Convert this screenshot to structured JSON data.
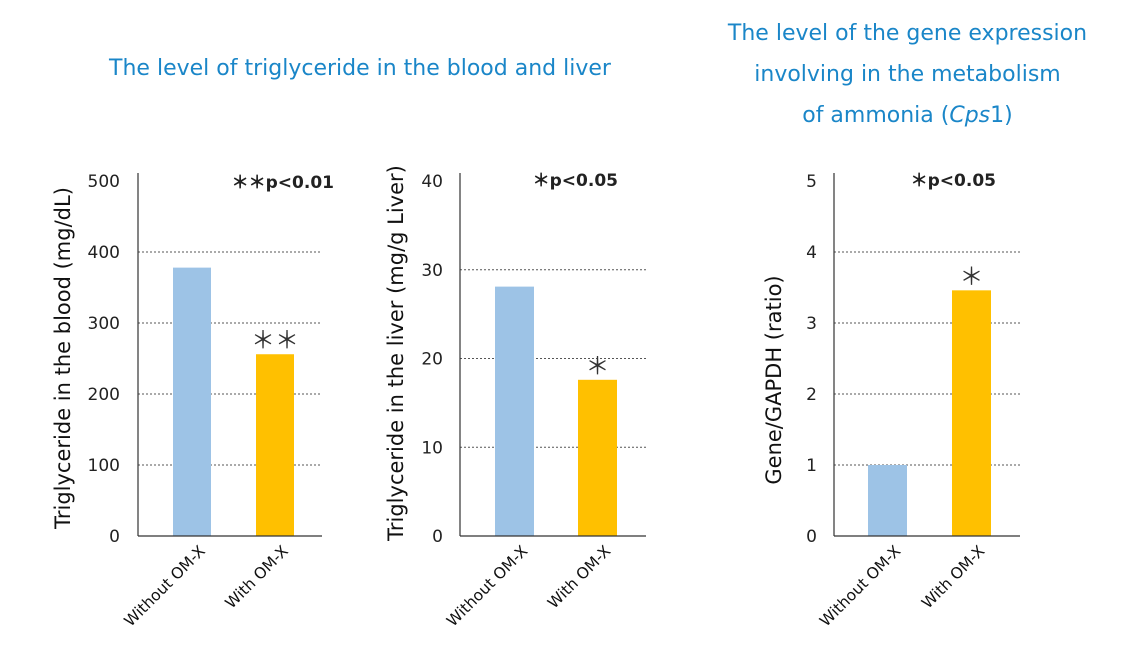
{
  "heading_left": "The level of triglyceride in the blood and liver",
  "heading_right": {
    "line1": "The level of the gene expression",
    "line2": "involving in the metabolism",
    "line3_pre": "of ammonia (",
    "line3_italic": "Cps",
    "line3_post": "1)"
  },
  "colors": {
    "heading": "#1a86c8",
    "without": "#9dc3e6",
    "with": "#ffc000"
  },
  "chart_data": [
    {
      "type": "bar",
      "categories": [
        "Without OM-X",
        "With OM-X"
      ],
      "values": [
        378,
        256
      ],
      "ylabel": "Triglyceride in the blood  (mg/dL)",
      "ylim": [
        0,
        500
      ],
      "yticks": [
        0,
        100,
        200,
        300,
        400,
        500
      ],
      "yticklabels": [
        "0",
        "100",
        "200",
        "300",
        "400",
        "500"
      ],
      "significance_note": "＊＊p<0.01",
      "bar_annotations": [
        "",
        "＊＊"
      ],
      "grid": true
    },
    {
      "type": "bar",
      "categories": [
        "Without OM-X",
        "With OM-X"
      ],
      "values": [
        28.1,
        17.6
      ],
      "ylabel": "Triglyceride in the liver  (mg/g Liver)",
      "ylim": [
        0,
        40
      ],
      "yticks": [
        0,
        10,
        20,
        30,
        40
      ],
      "yticklabels": [
        "0",
        "10",
        "20",
        "30",
        "40"
      ],
      "significance_note": "＊p<0.05",
      "bar_annotations": [
        "",
        "＊"
      ],
      "grid": true
    },
    {
      "type": "bar",
      "categories": [
        "Without OM-X",
        "With OM-X"
      ],
      "values": [
        1.0,
        3.46
      ],
      "ylabel": "Gene/GAPDH (ratio)",
      "ylim": [
        0,
        5
      ],
      "yticks": [
        0,
        1,
        2,
        3,
        4,
        5
      ],
      "yticklabels": [
        "0",
        "1",
        "2",
        "3",
        "4",
        "5"
      ],
      "significance_note": "＊p<0.05",
      "bar_annotations": [
        "",
        "＊"
      ],
      "grid": true
    }
  ]
}
